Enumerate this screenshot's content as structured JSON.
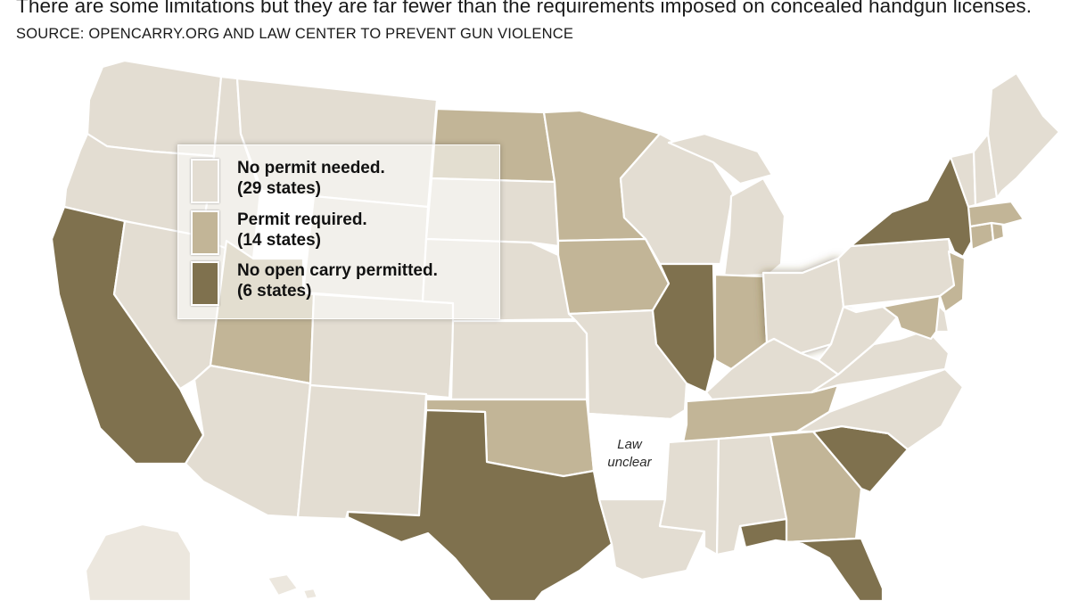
{
  "header": {
    "subtitle": "There are some limitations but they are far fewer than the requirements imposed on concealed handgun licenses.",
    "source": "SOURCE: OPENCARRY.ORG AND LAW CENTER TO PREVENT GUN VIOLENCE"
  },
  "colors": {
    "no_permit": "#e3ddd2",
    "permit_required": "#c2b597",
    "no_open_carry": "#7f714e",
    "law_unclear": "#ffffff",
    "land_outside": "#ece7de"
  },
  "legend": {
    "items": [
      {
        "label": "No permit needed.",
        "count": "(29 states)",
        "category": "no_permit"
      },
      {
        "label": "Permit required.",
        "count": "(14 states)",
        "category": "permit_required"
      },
      {
        "label": "No open carry permitted.",
        "count": "(6 states)",
        "category": "no_open_carry"
      }
    ]
  },
  "map": {
    "note_line1": "Law",
    "note_line2": "unclear",
    "states": {
      "WA": "no_permit",
      "OR": "no_permit",
      "CA": "no_open_carry",
      "NV": "no_permit",
      "ID": "no_permit",
      "MT": "no_permit",
      "WY": "no_permit",
      "UT": "permit_required",
      "AZ": "no_permit",
      "CO": "no_permit",
      "NM": "no_permit",
      "ND": "permit_required",
      "SD": "no_permit",
      "NE": "no_permit",
      "KS": "no_permit",
      "OK": "permit_required",
      "TX": "no_open_carry",
      "MN": "permit_required",
      "IA": "permit_required",
      "MO": "no_permit",
      "AR": "law_unclear",
      "LA": "no_permit",
      "WI": "no_permit",
      "IL": "no_open_carry",
      "MI": "no_permit",
      "IN": "permit_required",
      "OH": "no_permit",
      "KY": "no_permit",
      "TN": "permit_required",
      "MS": "no_permit",
      "AL": "no_permit",
      "GA": "permit_required",
      "FL": "no_open_carry",
      "SC": "no_open_carry",
      "NC": "no_permit",
      "VA": "no_permit",
      "WV": "no_permit",
      "PA": "no_permit",
      "NY": "no_open_carry",
      "NJ": "permit_required",
      "MD": "permit_required",
      "DE": "no_permit",
      "CT": "permit_required",
      "MA": "permit_required",
      "RI": "permit_required",
      "VT": "no_permit",
      "NH": "no_permit",
      "ME": "no_permit"
    }
  }
}
